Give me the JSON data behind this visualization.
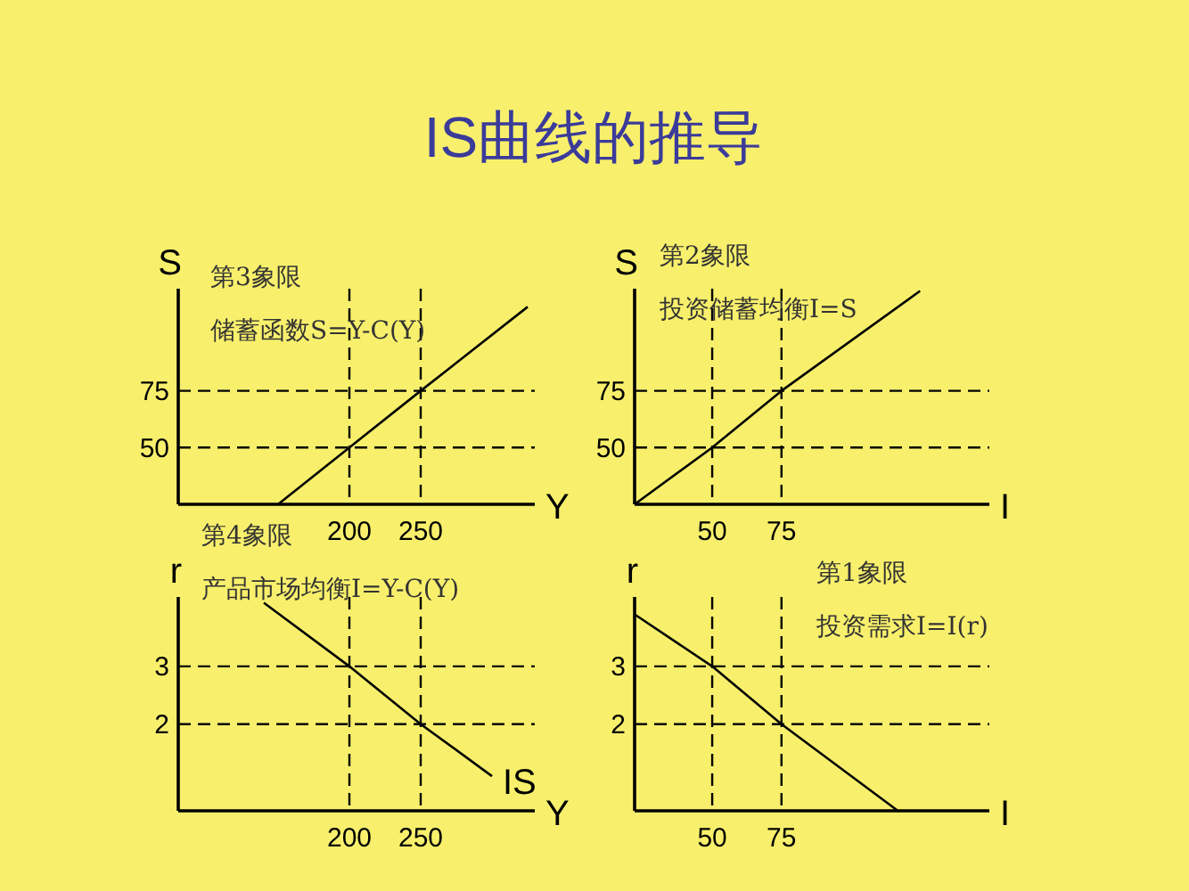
{
  "chart_data": [
    {
      "type": "line",
      "title": "IS曲线的推导",
      "xlabel": "Y",
      "ylabel": "S",
      "xlim": [
        80,
        330
      ],
      "ylim": [
        25,
        120
      ],
      "xticks": [
        200,
        250
      ],
      "yticks": [
        50,
        75
      ],
      "series": [
        {
          "color": "#000000",
          "x": [
            150,
            200,
            250,
            325
          ],
          "values": [
            25,
            50,
            75,
            112
          ]
        }
      ],
      "ref_lines": [
        {
          "axis": "y",
          "value": 50,
          "color": "#000000",
          "line_style": "dashed"
        },
        {
          "axis": "y",
          "value": 75,
          "color": "#000000",
          "line_style": "dashed"
        },
        {
          "axis": "x",
          "value": 200,
          "color": "#000000",
          "line_style": "dashed"
        },
        {
          "axis": "x",
          "value": 250,
          "color": "#000000",
          "line_style": "dashed"
        }
      ],
      "annotations": [
        "第3象限",
        "储蓄函数S=Y-C(Y)"
      ]
    },
    {
      "type": "line",
      "xlabel": "I",
      "ylabel": "S",
      "xlim": [
        22,
        150
      ],
      "ylim": [
        25,
        120
      ],
      "xticks": [
        50,
        75
      ],
      "yticks": [
        50,
        75
      ],
      "series": [
        {
          "color": "#000000",
          "x": [
            22,
            50,
            75,
            125
          ],
          "values": [
            25,
            50,
            75,
            119
          ]
        }
      ],
      "ref_lines": [
        {
          "axis": "y",
          "value": 50,
          "color": "#000000",
          "line_style": "dashed"
        },
        {
          "axis": "y",
          "value": 75,
          "color": "#000000",
          "line_style": "dashed"
        },
        {
          "axis": "x",
          "value": 50,
          "color": "#000000",
          "line_style": "dashed"
        },
        {
          "axis": "x",
          "value": 75,
          "color": "#000000",
          "line_style": "dashed"
        }
      ],
      "annotations": [
        "第2象限",
        "投资储蓄均衡I=S"
      ]
    },
    {
      "type": "line",
      "xlabel": "Y",
      "ylabel": "r",
      "xlim": [
        80,
        330
      ],
      "ylim": [
        0.5,
        4.2
      ],
      "xticks": [
        200,
        250
      ],
      "yticks": [
        2,
        3
      ],
      "series": [
        {
          "name": "IS",
          "color": "#000000",
          "x": [
            140,
            200,
            250,
            300
          ],
          "values": [
            4.1,
            3,
            2,
            1.1
          ]
        }
      ],
      "ref_lines": [
        {
          "axis": "y",
          "value": 2,
          "color": "#000000",
          "line_style": "dashed"
        },
        {
          "axis": "y",
          "value": 3,
          "color": "#000000",
          "line_style": "dashed"
        },
        {
          "axis": "x",
          "value": 200,
          "color": "#000000",
          "line_style": "dashed"
        },
        {
          "axis": "x",
          "value": 250,
          "color": "#000000",
          "line_style": "dashed"
        }
      ],
      "annotations": [
        "第4象限",
        "产品市场均衡I=Y-C(Y)"
      ]
    },
    {
      "type": "line",
      "xlabel": "I",
      "ylabel": "r",
      "xlim": [
        22,
        150
      ],
      "ylim": [
        0.5,
        4.2
      ],
      "xticks": [
        50,
        75
      ],
      "yticks": [
        2,
        3
      ],
      "series": [
        {
          "color": "#000000",
          "x": [
            22,
            50,
            75,
            117
          ],
          "values": [
            3.9,
            3,
            2,
            0.5
          ]
        }
      ],
      "ref_lines": [
        {
          "axis": "y",
          "value": 2,
          "color": "#000000",
          "line_style": "dashed"
        },
        {
          "axis": "y",
          "value": 3,
          "color": "#000000",
          "line_style": "dashed"
        },
        {
          "axis": "x",
          "value": 50,
          "color": "#000000",
          "line_style": "dashed"
        },
        {
          "axis": "x",
          "value": 75,
          "color": "#000000",
          "line_style": "dashed"
        }
      ],
      "annotations": [
        "第1象限",
        "投资需求I=I(r)"
      ]
    }
  ]
}
